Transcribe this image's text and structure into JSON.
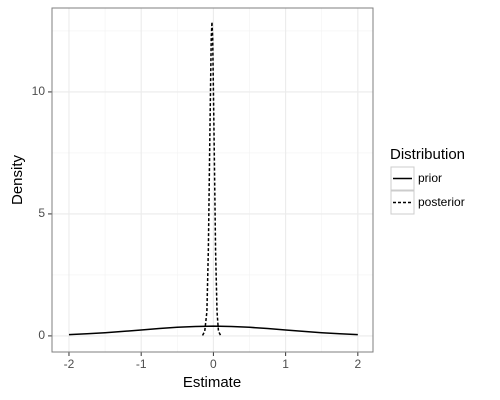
{
  "chart_data": {
    "type": "line",
    "x_label": "Estimate",
    "y_label": "Density",
    "xlim": [
      -2.235,
      2.21
    ],
    "ylim": [
      -0.66,
      13.44
    ],
    "xticks": [
      -2,
      -1,
      0,
      1,
      2
    ],
    "yticks": [
      0,
      5,
      10
    ],
    "xminor": [
      -1.5,
      -0.5,
      0.5,
      1.5
    ],
    "yminor": [
      2.5,
      7.5,
      12.5
    ],
    "grid": true,
    "legend_title": "Distribution",
    "legend_position": "right",
    "series": [
      {
        "name": "prior",
        "color": "#000000",
        "linetype": "solid",
        "x": [
          -2,
          -1.75,
          -1.5,
          -1.25,
          -1,
          -0.75,
          -0.5,
          -0.25,
          0,
          0.25,
          0.5,
          0.75,
          1,
          1.25,
          1.5,
          1.75,
          2
        ],
        "values": [
          0.054,
          0.086,
          0.13,
          0.183,
          0.242,
          0.301,
          0.352,
          0.387,
          0.399,
          0.387,
          0.352,
          0.301,
          0.242,
          0.183,
          0.13,
          0.086,
          0.054
        ]
      },
      {
        "name": "posterior",
        "color": "#000000",
        "linetype": "dashed",
        "x": [
          -0.15,
          -0.12,
          -0.09,
          -0.07,
          -0.05,
          -0.03,
          -0.02,
          -0.01,
          0.01,
          0.03,
          0.05,
          0.07,
          0.1
        ],
        "values": [
          0.02,
          0.19,
          1.0,
          3.5,
          8.0,
          12.2,
          12.87,
          12.2,
          8.0,
          3.5,
          1.0,
          0.19,
          0.02
        ]
      }
    ]
  }
}
